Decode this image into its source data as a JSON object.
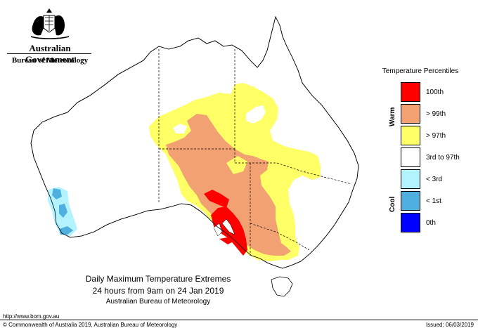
{
  "branding": {
    "government": "Australian Government",
    "bureau": "Bureau of Meteorology"
  },
  "legend": {
    "title": "Temperature Percentiles",
    "warm_label": "Warm",
    "cool_label": "Cool",
    "items": [
      {
        "label": "100th",
        "color": "#ff0000"
      },
      {
        "label": "> 99th",
        "color": "#f2a172"
      },
      {
        "label": "> 97th",
        "color": "#ffff66"
      },
      {
        "label": "3rd to 97th",
        "color": "#ffffff"
      },
      {
        "label": "< 3rd",
        "color": "#b3f2ff"
      },
      {
        "label": "< 1st",
        "color": "#4fb0e0"
      },
      {
        "label": "0th",
        "color": "#0000ff"
      }
    ]
  },
  "caption": {
    "line1": "Daily Maximum Temperature Extremes",
    "line2": "24 hours from 9am on 24 Jan 2019",
    "line3": "Australian Bureau of Meteorology"
  },
  "footer": {
    "url": "http://www.bom.gov.au",
    "copyright": "© Commonwealth of Australia 2019, Australian Bureau of Meteorology",
    "issued": "Issued: 06/03/2019"
  }
}
